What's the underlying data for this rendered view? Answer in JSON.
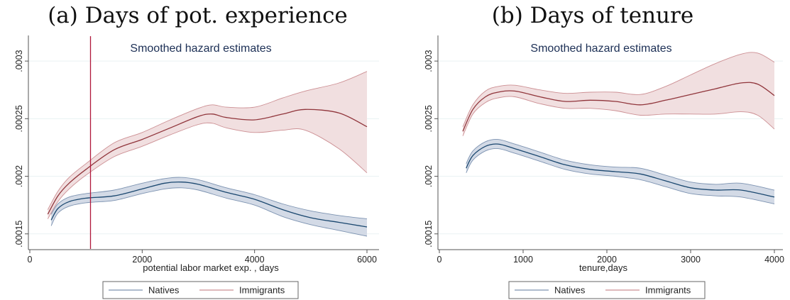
{
  "panels": [
    {
      "caption": "(a) Days of pot. experience"
    },
    {
      "caption": "(b) Days of tenure"
    }
  ],
  "colors": {
    "natives_line": "#1a476f",
    "natives_band": "#d3dae6",
    "natives_band_edge": "#7d93b1",
    "immigrants_line": "#90353b",
    "immigrants_band": "#f1dfe0",
    "immigrants_band_edge": "#cc8f93",
    "marker_line": "#b0173a",
    "axis": "#555555",
    "grid": "#eaf2f3"
  },
  "chart_data": [
    {
      "type": "line",
      "title": "Smoothed hazard estimates",
      "xlabel": "potential labor market exp. , days",
      "ylabel": "",
      "xlim": [
        0,
        6000
      ],
      "ylim": [
        0.00014,
        0.000305
      ],
      "xticks": [
        0,
        2000,
        4000,
        6000
      ],
      "xtick_labels": [
        "0",
        "2000",
        "4000",
        "6000"
      ],
      "yticks": [
        0.00015,
        0.0002,
        0.00025,
        0.0003
      ],
      "ytick_labels": [
        ".00015",
        ".0002",
        ".00025",
        ".0003"
      ],
      "grid": true,
      "legend": "bottom",
      "vertical_line_x": 1080,
      "series": [
        {
          "name": "Natives",
          "x": [
            380,
            500,
            700,
            1000,
            1500,
            2000,
            2400,
            2700,
            3000,
            3500,
            4000,
            4500,
            5000,
            5500,
            6000
          ],
          "y": [
            0.000162,
            0.000172,
            0.000178,
            0.000181,
            0.000183,
            0.000189,
            0.000194,
            0.000195,
            0.000193,
            0.000186,
            0.00018,
            0.000171,
            0.000164,
            0.00016,
            0.000156
          ],
          "lower": [
            0.000157,
            0.000168,
            0.000174,
            0.000177,
            0.000179,
            0.000185,
            0.000189,
            0.00019,
            0.000188,
            0.000181,
            0.000175,
            0.000165,
            0.000158,
            0.000153,
            0.000148
          ],
          "upper": [
            0.000167,
            0.000176,
            0.000182,
            0.000185,
            0.000188,
            0.000194,
            0.000198,
            0.000199,
            0.000197,
            0.00019,
            0.000184,
            0.000176,
            0.00017,
            0.000166,
            0.000163
          ]
        },
        {
          "name": "Immigrants",
          "x": [
            320,
            500,
            700,
            1000,
            1500,
            2000,
            2500,
            3000,
            3250,
            3500,
            4000,
            4500,
            4900,
            5500,
            6000
          ],
          "y": [
            0.000167,
            0.000183,
            0.000194,
            0.000206,
            0.000223,
            0.000232,
            0.000242,
            0.000252,
            0.000254,
            0.000251,
            0.000249,
            0.000254,
            0.000258,
            0.000255,
            0.000243
          ],
          "lower": [
            0.000163,
            0.000178,
            0.000189,
            0.000201,
            0.000217,
            0.000226,
            0.000236,
            0.000245,
            0.000246,
            0.000242,
            0.000238,
            0.00024,
            0.00024,
            0.000224,
            0.000203
          ],
          "upper": [
            0.000171,
            0.000187,
            0.000199,
            0.000211,
            0.000229,
            0.000238,
            0.000249,
            0.000259,
            0.000262,
            0.00026,
            0.00026,
            0.000268,
            0.000274,
            0.000281,
            0.000291
          ]
        }
      ]
    },
    {
      "type": "line",
      "title": "Smoothed hazard estimates",
      "xlabel": "tenure,days",
      "ylabel": "",
      "xlim": [
        0,
        4000
      ],
      "ylim": [
        0.00014,
        0.000305
      ],
      "xticks": [
        0,
        1000,
        2000,
        3000,
        4000
      ],
      "xtick_labels": [
        "0",
        "1000",
        "2000",
        "3000",
        "4000"
      ],
      "yticks": [
        0.00015,
        0.0002,
        0.00025,
        0.0003
      ],
      "ytick_labels": [
        ".00015",
        ".0002",
        ".00025",
        ".0003"
      ],
      "grid": true,
      "legend": "bottom",
      "series": [
        {
          "name": "Natives",
          "x": [
            320,
            400,
            550,
            700,
            900,
            1200,
            1500,
            1800,
            2100,
            2400,
            2700,
            3000,
            3300,
            3600,
            4000
          ],
          "y": [
            0.000207,
            0.000218,
            0.000226,
            0.000228,
            0.000224,
            0.000217,
            0.00021,
            0.000206,
            0.000204,
            0.000202,
            0.000196,
            0.00019,
            0.000188,
            0.000188,
            0.000182
          ],
          "lower": [
            0.000203,
            0.000214,
            0.000222,
            0.000224,
            0.00022,
            0.000213,
            0.000206,
            0.000202,
            0.0002,
            0.000197,
            0.000191,
            0.000185,
            0.000183,
            0.000182,
            0.000176
          ],
          "upper": [
            0.000211,
            0.000222,
            0.00023,
            0.000232,
            0.000228,
            0.000221,
            0.000214,
            0.00021,
            0.000208,
            0.000207,
            0.000201,
            0.000195,
            0.000193,
            0.000194,
            0.000188
          ]
        },
        {
          "name": "Immigrants",
          "x": [
            280,
            400,
            550,
            700,
            900,
            1200,
            1500,
            1800,
            2100,
            2400,
            2700,
            3000,
            3300,
            3600,
            3800,
            4000
          ],
          "y": [
            0.000239,
            0.000258,
            0.000269,
            0.000273,
            0.000274,
            0.000269,
            0.000265,
            0.000266,
            0.000265,
            0.000262,
            0.000266,
            0.000271,
            0.000276,
            0.000281,
            0.00028,
            0.00027
          ],
          "lower": [
            0.000235,
            0.000254,
            0.000264,
            0.000268,
            0.000269,
            0.000263,
            0.000259,
            0.000259,
            0.000257,
            0.000253,
            0.000254,
            0.000254,
            0.000254,
            0.000256,
            0.000253,
            0.000241
          ],
          "upper": [
            0.000243,
            0.000262,
            0.000274,
            0.000278,
            0.000279,
            0.000275,
            0.000272,
            0.000273,
            0.000273,
            0.000271,
            0.000278,
            0.000288,
            0.000298,
            0.000306,
            0.000307,
            0.000299
          ]
        }
      ]
    }
  ]
}
